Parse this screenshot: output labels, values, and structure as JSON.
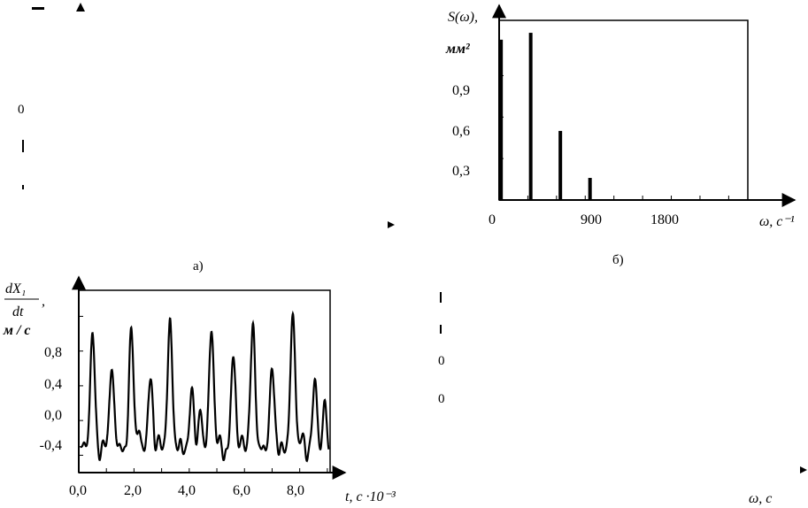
{
  "spectrum_chart": {
    "ylabel": "S(ω),",
    "yunit": "мм²",
    "xlabel": "ω, с⁻¹",
    "y_ticks": [
      "0,3",
      "0,6",
      "0,9"
    ],
    "x_ticks": [
      "0",
      "900",
      "1800"
    ],
    "caption": "б)"
  },
  "velocity_chart": {
    "ylabel_num": "dX₁",
    "ylabel_den": "dt",
    "ylabel_comma": ",",
    "yunit": "м / с",
    "xlabel": "t, с ·10⁻³",
    "y_ticks": [
      "0,8",
      "0,4",
      "0,0",
      "-0,4"
    ],
    "x_ticks": [
      "0,0",
      "2,0",
      "4,0",
      "6,0",
      "8,0"
    ]
  },
  "fragments": {
    "top_left_zero": "0",
    "top_left_caption": "а)",
    "bottom_right_a": "0",
    "bottom_right_b": "0",
    "bottom_right_xlabel": "ω, с"
  },
  "chart_data": [
    {
      "type": "bar",
      "title": "",
      "xlabel": "ω, с⁻¹",
      "ylabel": "S(ω), мм²",
      "xlim": [
        0,
        2600
      ],
      "ylim": [
        0,
        1.3
      ],
      "x": [
        20,
        330,
        640,
        950
      ],
      "values": [
        1.16,
        1.21,
        0.5,
        0.16
      ],
      "grid": false
    },
    {
      "type": "line",
      "title": "",
      "xlabel": "t, с ·10⁻³",
      "ylabel": "dX₁/dt, м / с",
      "xlim": [
        0,
        9.1
      ],
      "ylim": [
        -0.6,
        1.5
      ],
      "grid": false,
      "peaks": [
        {
          "t": 0.2,
          "v": -0.2
        },
        {
          "t": 0.5,
          "v": 1.0
        },
        {
          "t": 0.9,
          "v": -0.25
        },
        {
          "t": 1.2,
          "v": 0.65
        },
        {
          "t": 1.5,
          "v": -0.3
        },
        {
          "t": 1.9,
          "v": 1.05
        },
        {
          "t": 2.2,
          "v": -0.05
        },
        {
          "t": 2.6,
          "v": 0.5
        },
        {
          "t": 2.9,
          "v": -0.2
        },
        {
          "t": 3.3,
          "v": 1.2
        },
        {
          "t": 3.7,
          "v": -0.2
        },
        {
          "t": 4.1,
          "v": 0.35
        },
        {
          "t": 4.4,
          "v": 0.15
        },
        {
          "t": 4.8,
          "v": 1.1
        },
        {
          "t": 5.1,
          "v": -0.2
        },
        {
          "t": 5.6,
          "v": 0.75
        },
        {
          "t": 5.9,
          "v": -0.2
        },
        {
          "t": 6.3,
          "v": 1.15
        },
        {
          "t": 6.7,
          "v": -0.25
        },
        {
          "t": 7.0,
          "v": 0.6
        },
        {
          "t": 7.3,
          "v": -0.25
        },
        {
          "t": 7.75,
          "v": 1.3
        },
        {
          "t": 8.1,
          "v": -0.15
        },
        {
          "t": 8.55,
          "v": 0.45
        },
        {
          "t": 8.9,
          "v": 0.25
        }
      ]
    }
  ]
}
